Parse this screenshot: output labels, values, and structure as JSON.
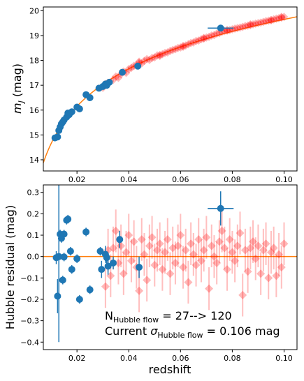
{
  "chart_data": [
    {
      "type": "scatter",
      "panel": "top",
      "xlabel": "",
      "ylabel_main": "m",
      "ylabel_sub": "J",
      "ylabel_unit": " (mag)",
      "xlim": [
        0.007,
        0.105
      ],
      "ylim": [
        13.55,
        20.15
      ],
      "xticks": [
        0.02,
        0.04,
        0.06,
        0.08,
        0.1
      ],
      "xtick_labels": [
        "0.02",
        "0.04",
        "0.06",
        "0.08",
        "0.10"
      ],
      "yticks": [
        14,
        15,
        16,
        17,
        18,
        19,
        20
      ],
      "ytick_labels": [
        "14",
        "15",
        "16",
        "17",
        "18",
        "19",
        "20"
      ],
      "colors": {
        "observed": "#1f77b4",
        "simulated": "#ff0000",
        "model": "#ff7f0e"
      },
      "model_curve": {
        "name": "model",
        "form": "m0 + 5*log10(z)",
        "m0": 24.65
      },
      "series": [
        {
          "kind": "observed",
          "x": [
            0.0115,
            0.0125,
            0.013,
            0.0135,
            0.014,
            0.0145,
            0.015,
            0.016,
            0.0165,
            0.017,
            0.018,
            0.02,
            0.021,
            0.0235,
            0.025,
            0.0285,
            0.03,
            0.031,
            0.0315,
            0.0325,
            0.0375,
            0.0435,
            0.0755
          ],
          "y": [
            14.88,
            14.92,
            15.18,
            15.32,
            15.45,
            15.52,
            15.6,
            15.72,
            15.88,
            15.82,
            15.93,
            16.12,
            16.05,
            16.62,
            16.5,
            16.88,
            16.95,
            17.05,
            17.0,
            17.12,
            17.52,
            17.77,
            19.3
          ],
          "xerr": [
            0,
            0,
            0,
            0,
            0,
            0,
            0,
            0,
            0,
            0,
            0,
            0,
            0,
            0,
            0,
            0,
            0,
            0,
            0,
            0,
            0,
            0,
            0.005
          ]
        },
        {
          "kind": "simulated",
          "x": [
            0.03,
            0.032,
            0.034,
            0.035,
            0.036,
            0.038,
            0.039,
            0.04,
            0.041,
            0.042,
            0.043,
            0.044,
            0.045,
            0.046,
            0.047,
            0.048,
            0.049,
            0.05,
            0.051,
            0.052,
            0.053,
            0.054,
            0.055,
            0.056,
            0.057,
            0.058,
            0.059,
            0.06,
            0.061,
            0.062,
            0.063,
            0.064,
            0.065,
            0.066,
            0.067,
            0.068,
            0.069,
            0.07,
            0.071,
            0.072,
            0.073,
            0.074,
            0.075,
            0.076,
            0.077,
            0.078,
            0.079,
            0.08,
            0.081,
            0.082,
            0.083,
            0.084,
            0.085,
            0.086,
            0.087,
            0.088,
            0.089,
            0.09,
            0.091,
            0.092,
            0.093,
            0.094,
            0.095,
            0.096,
            0.097,
            0.098,
            0.099,
            0.1,
            0.031,
            0.037,
            0.044,
            0.052,
            0.061,
            0.069,
            0.078,
            0.087,
            0.095,
            0.099
          ],
          "y": [
            16.9,
            17.1,
            17.22,
            17.35,
            17.3,
            17.55,
            17.5,
            17.65,
            17.7,
            17.78,
            17.8,
            17.9,
            17.88,
            17.98,
            18.05,
            18.02,
            18.1,
            18.12,
            18.2,
            18.18,
            18.25,
            18.3,
            18.32,
            18.38,
            18.42,
            18.45,
            18.5,
            18.52,
            18.58,
            18.6,
            18.65,
            18.7,
            18.72,
            18.78,
            18.8,
            18.85,
            18.9,
            18.92,
            18.95,
            19.0,
            19.02,
            19.08,
            19.1,
            19.15,
            19.18,
            19.2,
            19.22,
            19.25,
            19.28,
            19.3,
            19.32,
            19.35,
            19.38,
            19.4,
            19.42,
            19.45,
            19.48,
            19.5,
            19.52,
            19.55,
            19.58,
            19.6,
            19.62,
            19.65,
            19.68,
            19.7,
            19.72,
            19.75,
            17.05,
            17.45,
            17.95,
            18.22,
            18.55,
            18.88,
            19.22,
            19.45,
            19.62,
            19.75
          ],
          "yerr": 0.08
        }
      ]
    },
    {
      "type": "scatter",
      "panel": "bottom",
      "xlabel": "redshift",
      "ylabel": "Hubble residual (mag)",
      "xlim": [
        0.007,
        0.105
      ],
      "ylim": [
        -0.435,
        0.335
      ],
      "xticks": [
        0.02,
        0.04,
        0.06,
        0.08,
        0.1
      ],
      "xtick_labels": [
        "0.02",
        "0.04",
        "0.06",
        "0.08",
        "0.10"
      ],
      "yticks": [
        -0.4,
        -0.3,
        -0.2,
        -0.1,
        0.0,
        0.1,
        0.2,
        0.3
      ],
      "ytick_labels": [
        "−0.4",
        "−0.3",
        "−0.2",
        "−0.1",
        "0.0",
        "0.1",
        "0.2",
        "0.3"
      ],
      "zero_line": 0.0,
      "colors": {
        "observed": "#1f77b4",
        "simulated": "#ff0000",
        "zero_line": "#ff7f0e"
      },
      "annotations": {
        "line1_main": "N",
        "line1_sub": "Hubble flow",
        "line1_tail": " = 27--> 120",
        "line2_main": "Current ",
        "line2_sigma": "σ",
        "line2_sub": "Hubble flow",
        "line2_tail": " = 0.106 mag"
      },
      "series": [
        {
          "kind": "observed",
          "x": [
            0.012,
            0.0125,
            0.013,
            0.0135,
            0.014,
            0.0145,
            0.015,
            0.015,
            0.016,
            0.0165,
            0.0175,
            0.018,
            0.02,
            0.021,
            0.0235,
            0.025,
            0.029,
            0.0295,
            0.031,
            0.032,
            0.0315,
            0.034,
            0.0365,
            0.044,
            0.0755
          ],
          "y": [
            -0.005,
            -0.185,
            0.0,
            0.105,
            0.085,
            -0.11,
            0.105,
            -0.002,
            0.17,
            0.175,
            0.025,
            -0.06,
            -0.01,
            -0.2,
            0.115,
            -0.155,
            0.025,
            -0.06,
            0.01,
            -0.045,
            -0.005,
            -0.03,
            0.08,
            -0.05,
            0.225
          ],
          "yerr": [
            0.03,
            0.08,
            0.4,
            0.02,
            0.02,
            0.02,
            0.02,
            0.02,
            0.02,
            0.02,
            0.02,
            0.02,
            0.02,
            0.02,
            0.02,
            0.02,
            0.02,
            0.04,
            0.04,
            0.04,
            0.03,
            0.03,
            0.04,
            0.05,
            0.08
          ],
          "xerr": [
            0,
            0,
            0,
            0,
            0,
            0,
            0,
            0,
            0,
            0,
            0,
            0,
            0,
            0,
            0,
            0,
            0,
            0,
            0,
            0,
            0,
            0,
            0,
            0,
            0.005
          ]
        },
        {
          "kind": "simulated",
          "x": [
            0.031,
            0.032,
            0.033,
            0.034,
            0.035,
            0.036,
            0.037,
            0.038,
            0.039,
            0.04,
            0.041,
            0.042,
            0.043,
            0.044,
            0.045,
            0.046,
            0.047,
            0.048,
            0.049,
            0.05,
            0.051,
            0.052,
            0.053,
            0.054,
            0.055,
            0.056,
            0.057,
            0.058,
            0.059,
            0.06,
            0.061,
            0.062,
            0.063,
            0.064,
            0.065,
            0.066,
            0.067,
            0.068,
            0.069,
            0.07,
            0.071,
            0.072,
            0.073,
            0.074,
            0.075,
            0.076,
            0.077,
            0.078,
            0.079,
            0.08,
            0.081,
            0.082,
            0.083,
            0.084,
            0.085,
            0.086,
            0.087,
            0.088,
            0.089,
            0.09,
            0.091,
            0.092,
            0.093,
            0.094,
            0.095,
            0.096,
            0.097,
            0.098,
            0.099,
            0.1
          ],
          "y": [
            -0.14,
            0.03,
            -0.09,
            0.04,
            0.12,
            -0.03,
            0.05,
            -0.08,
            0.02,
            0.1,
            -0.02,
            0.07,
            -0.05,
            -0.16,
            0.08,
            0.01,
            -0.11,
            0.05,
            0.09,
            -0.04,
            0.03,
            0.06,
            -0.06,
            0.02,
            0.08,
            -0.08,
            0.04,
            -0.03,
            0.05,
            0.1,
            -0.05,
            0.03,
            -0.12,
            0.06,
            0.01,
            -0.04,
            0.08,
            -0.02,
            0.03,
            0.09,
            -0.15,
            0.05,
            0.0,
            -0.03,
            0.07,
            0.12,
            0.04,
            -0.06,
            0.08,
            0.02,
            -0.02,
            0.05,
            0.11,
            -0.18,
            0.03,
            -0.07,
            0.04,
            0.07,
            -0.01,
            0.05,
            -0.08,
            0.03,
            0.06,
            -0.1,
            0.02,
            0.04,
            -0.09,
            0.01,
            -0.05,
            0.06
          ],
          "yerr": 0.1
        }
      ]
    }
  ]
}
